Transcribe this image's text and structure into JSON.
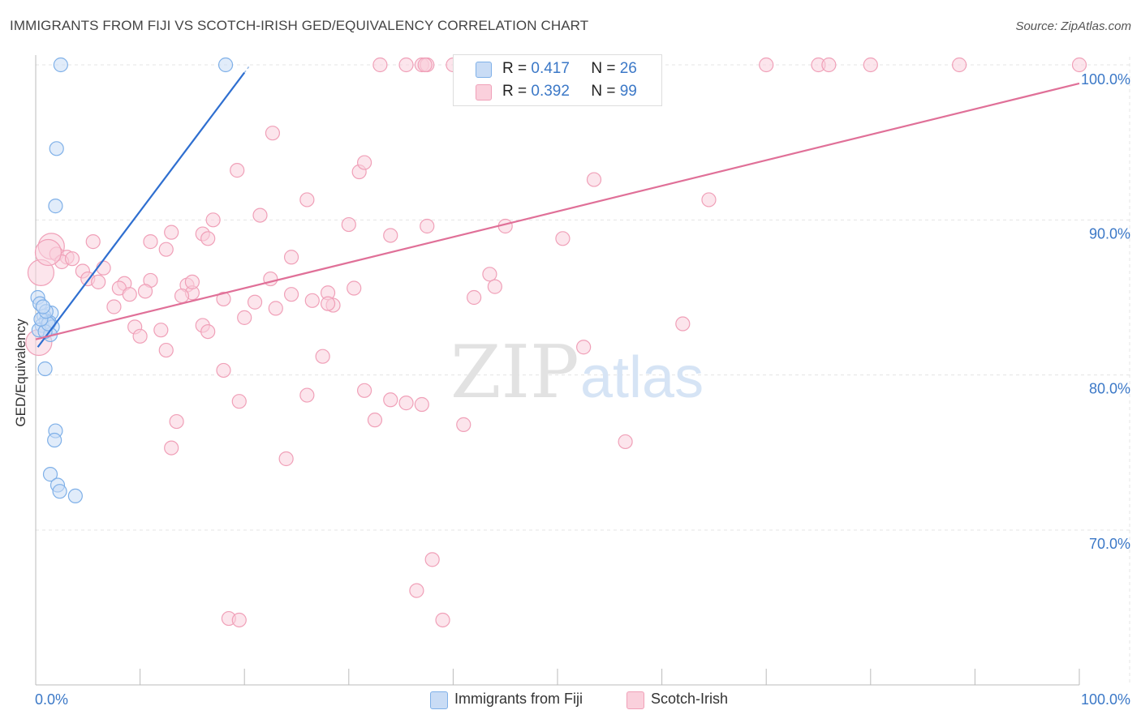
{
  "header": {
    "title": "IMMIGRANTS FROM FIJI VS SCOTCH-IRISH GED/EQUIVALENCY CORRELATION CHART",
    "source": "Source: ZipAtlas.com"
  },
  "watermark": {
    "zip": "ZIP",
    "atlas": "atlas"
  },
  "legend": {
    "rows": [
      {
        "r_label": "R =",
        "r_value": "0.417",
        "n_label": "N =",
        "n_value": "26",
        "color": "#7fb0e8",
        "fill": "#c9dcf5"
      },
      {
        "r_label": "R =",
        "r_value": "0.392",
        "n_label": "N =",
        "n_value": "99",
        "color": "#f0a0b8",
        "fill": "#fad0dc"
      }
    ]
  },
  "bottom_legend": {
    "items": [
      {
        "label": "Immigrants from Fiji",
        "color": "#7fb0e8",
        "fill": "#c9dcf5"
      },
      {
        "label": "Scotch-Irish",
        "color": "#f0a0b8",
        "fill": "#fad0dc"
      }
    ]
  },
  "chart_data": {
    "type": "scatter",
    "title": "IMMIGRANTS FROM FIJI VS SCOTCH-IRISH GED/EQUIVALENCY CORRELATION CHART",
    "xlabel": "",
    "ylabel": "GED/Equivalency",
    "xlim": [
      0,
      100
    ],
    "ylim": [
      60,
      100
    ],
    "x_tick_labels": [
      "0.0%",
      "100.0%"
    ],
    "y_ticks": [
      70,
      80,
      90,
      100
    ],
    "y_tick_labels": [
      "70.0%",
      "80.0%",
      "90.0%",
      "100.0%"
    ],
    "grid": true,
    "legend_position": "top-center",
    "series": [
      {
        "name": "Immigrants from Fiji",
        "color": "#7fb0e8",
        "fill": "#c9dcf5",
        "line_color": "#2f6fd0",
        "trend": {
          "x": [
            0.2,
            20.0
          ],
          "y": [
            81.8,
            99.5
          ]
        },
        "points": [
          {
            "x": 2.4,
            "y": 100.0
          },
          {
            "x": 18.2,
            "y": 100.0
          },
          {
            "x": 2.0,
            "y": 94.6
          },
          {
            "x": 1.9,
            "y": 90.9
          },
          {
            "x": 0.2,
            "y": 85.0
          },
          {
            "x": 0.4,
            "y": 84.6
          },
          {
            "x": 1.5,
            "y": 84.0
          },
          {
            "x": 0.8,
            "y": 83.8
          },
          {
            "x": 1.0,
            "y": 83.5
          },
          {
            "x": 1.3,
            "y": 83.4
          },
          {
            "x": 0.6,
            "y": 83.2
          },
          {
            "x": 1.6,
            "y": 83.1
          },
          {
            "x": 0.3,
            "y": 82.9
          },
          {
            "x": 1.4,
            "y": 82.6
          },
          {
            "x": 0.9,
            "y": 82.8
          },
          {
            "x": 1.2,
            "y": 83.3
          },
          {
            "x": 0.5,
            "y": 83.6
          },
          {
            "x": 1.0,
            "y": 84.1
          },
          {
            "x": 0.9,
            "y": 80.4
          },
          {
            "x": 1.9,
            "y": 76.4
          },
          {
            "x": 1.8,
            "y": 75.8
          },
          {
            "x": 1.4,
            "y": 73.6
          },
          {
            "x": 2.1,
            "y": 72.9
          },
          {
            "x": 2.3,
            "y": 72.5
          },
          {
            "x": 3.8,
            "y": 72.2
          },
          {
            "x": 0.7,
            "y": 84.4
          }
        ]
      },
      {
        "name": "Scotch-Irish",
        "color": "#f0a0b8",
        "fill": "#fad0dc",
        "line_color": "#e07098",
        "trend": {
          "x": [
            0.0,
            100.0
          ],
          "y": [
            82.3,
            98.8
          ]
        },
        "points": [
          {
            "x": 33.0,
            "y": 100.0
          },
          {
            "x": 35.5,
            "y": 100.0
          },
          {
            "x": 37.0,
            "y": 100.0
          },
          {
            "x": 37.5,
            "y": 100.0
          },
          {
            "x": 40.0,
            "y": 100.0
          },
          {
            "x": 44.0,
            "y": 100.0
          },
          {
            "x": 56.0,
            "y": 100.0
          },
          {
            "x": 59.0,
            "y": 100.0
          },
          {
            "x": 70.0,
            "y": 100.0
          },
          {
            "x": 75.0,
            "y": 100.0
          },
          {
            "x": 76.0,
            "y": 100.0
          },
          {
            "x": 80.0,
            "y": 100.0
          },
          {
            "x": 88.5,
            "y": 100.0
          },
          {
            "x": 100.0,
            "y": 100.0
          },
          {
            "x": 37.3,
            "y": 100.0
          },
          {
            "x": 22.7,
            "y": 95.6
          },
          {
            "x": 19.3,
            "y": 93.2
          },
          {
            "x": 31.0,
            "y": 93.1
          },
          {
            "x": 31.5,
            "y": 93.7
          },
          {
            "x": 53.5,
            "y": 92.6
          },
          {
            "x": 26.0,
            "y": 91.3
          },
          {
            "x": 64.5,
            "y": 91.3
          },
          {
            "x": 21.5,
            "y": 90.3
          },
          {
            "x": 17.0,
            "y": 90.0
          },
          {
            "x": 30.0,
            "y": 89.7
          },
          {
            "x": 37.5,
            "y": 89.6
          },
          {
            "x": 45.0,
            "y": 89.6
          },
          {
            "x": 16.0,
            "y": 89.1
          },
          {
            "x": 13.0,
            "y": 89.2
          },
          {
            "x": 34.0,
            "y": 89.0
          },
          {
            "x": 50.5,
            "y": 88.8
          },
          {
            "x": 5.5,
            "y": 88.6
          },
          {
            "x": 11.0,
            "y": 88.6
          },
          {
            "x": 16.5,
            "y": 88.8
          },
          {
            "x": 1.5,
            "y": 88.3
          },
          {
            "x": 12.5,
            "y": 88.1
          },
          {
            "x": 2.0,
            "y": 87.8
          },
          {
            "x": 3.0,
            "y": 87.6
          },
          {
            "x": 24.5,
            "y": 87.6
          },
          {
            "x": 2.5,
            "y": 87.3
          },
          {
            "x": 6.5,
            "y": 86.9
          },
          {
            "x": 4.5,
            "y": 86.7
          },
          {
            "x": 0.5,
            "y": 86.6
          },
          {
            "x": 43.5,
            "y": 86.5
          },
          {
            "x": 22.5,
            "y": 86.2
          },
          {
            "x": 5.0,
            "y": 86.2
          },
          {
            "x": 6.0,
            "y": 86.0
          },
          {
            "x": 8.5,
            "y": 85.9
          },
          {
            "x": 11.0,
            "y": 86.1
          },
          {
            "x": 14.5,
            "y": 85.8
          },
          {
            "x": 44.0,
            "y": 85.7
          },
          {
            "x": 30.5,
            "y": 85.6
          },
          {
            "x": 8.0,
            "y": 85.6
          },
          {
            "x": 10.5,
            "y": 85.4
          },
          {
            "x": 15.0,
            "y": 85.3
          },
          {
            "x": 28.0,
            "y": 85.3
          },
          {
            "x": 9.0,
            "y": 85.2
          },
          {
            "x": 24.5,
            "y": 85.2
          },
          {
            "x": 14.0,
            "y": 85.1
          },
          {
            "x": 26.5,
            "y": 84.8
          },
          {
            "x": 28.5,
            "y": 84.5
          },
          {
            "x": 21.0,
            "y": 84.7
          },
          {
            "x": 7.5,
            "y": 84.4
          },
          {
            "x": 20.0,
            "y": 83.7
          },
          {
            "x": 16.0,
            "y": 83.2
          },
          {
            "x": 9.5,
            "y": 83.1
          },
          {
            "x": 12.0,
            "y": 82.9
          },
          {
            "x": 16.5,
            "y": 82.8
          },
          {
            "x": 62.0,
            "y": 83.3
          },
          {
            "x": 0.3,
            "y": 82.1
          },
          {
            "x": 52.5,
            "y": 81.8
          },
          {
            "x": 12.5,
            "y": 81.6
          },
          {
            "x": 27.5,
            "y": 81.2
          },
          {
            "x": 18.0,
            "y": 80.3
          },
          {
            "x": 31.5,
            "y": 79.0
          },
          {
            "x": 26.0,
            "y": 78.7
          },
          {
            "x": 19.5,
            "y": 78.3
          },
          {
            "x": 34.0,
            "y": 78.4
          },
          {
            "x": 35.5,
            "y": 78.2
          },
          {
            "x": 37.0,
            "y": 78.1
          },
          {
            "x": 32.5,
            "y": 77.1
          },
          {
            "x": 13.5,
            "y": 77.0
          },
          {
            "x": 41.0,
            "y": 76.8
          },
          {
            "x": 56.5,
            "y": 75.7
          },
          {
            "x": 13.0,
            "y": 75.3
          },
          {
            "x": 24.0,
            "y": 74.6
          },
          {
            "x": 38.0,
            "y": 68.1
          },
          {
            "x": 36.5,
            "y": 66.1
          },
          {
            "x": 18.5,
            "y": 64.3
          },
          {
            "x": 19.5,
            "y": 64.2
          },
          {
            "x": 39.0,
            "y": 64.2
          },
          {
            "x": 28.0,
            "y": 84.6
          },
          {
            "x": 1.2,
            "y": 87.9
          },
          {
            "x": 3.5,
            "y": 87.5
          },
          {
            "x": 15.0,
            "y": 86.0
          },
          {
            "x": 18.0,
            "y": 84.9
          },
          {
            "x": 23.0,
            "y": 84.3
          },
          {
            "x": 42.0,
            "y": 85.0
          },
          {
            "x": 10.0,
            "y": 82.5
          }
        ]
      }
    ]
  }
}
